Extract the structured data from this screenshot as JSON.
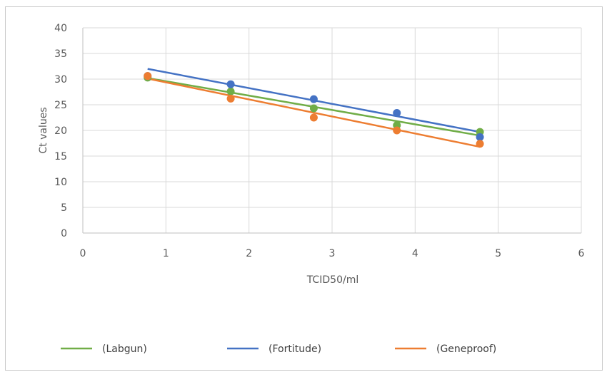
{
  "chart_data": {
    "type": "scatter",
    "title": "",
    "xlabel": "TCID50/ml",
    "ylabel": "Ct values",
    "xlim": [
      0,
      6
    ],
    "ylim": [
      0,
      40
    ],
    "xticks": [
      "0",
      "1",
      "2",
      "3",
      "4",
      "5",
      "6"
    ],
    "yticks": [
      "0",
      "5",
      "10",
      "15",
      "20",
      "25",
      "30",
      "35",
      "40"
    ],
    "grid": true,
    "legend_position": "bottom",
    "series": [
      {
        "name": "(Labgun)",
        "color": "#70ad47",
        "points": [
          [
            0.78,
            30.3
          ],
          [
            1.78,
            27.6
          ],
          [
            2.78,
            24.3
          ],
          [
            3.78,
            21.0
          ],
          [
            4.78,
            19.7
          ]
        ],
        "trendline": [
          [
            0.78,
            30.2
          ],
          [
            4.78,
            19.0
          ]
        ]
      },
      {
        "name": "(Fortitude)",
        "color": "#4472c4",
        "points": [
          [
            0.78,
            30.6
          ],
          [
            1.78,
            29.0
          ],
          [
            2.78,
            26.1
          ],
          [
            3.78,
            23.4
          ],
          [
            4.78,
            18.7
          ]
        ],
        "trendline": [
          [
            0.78,
            32.0
          ],
          [
            4.78,
            19.7
          ]
        ]
      },
      {
        "name": "(Geneproof)",
        "color": "#ed7d31",
        "points": [
          [
            0.78,
            30.6
          ],
          [
            1.78,
            26.2
          ],
          [
            2.78,
            22.5
          ],
          [
            3.78,
            20.0
          ],
          [
            4.78,
            17.4
          ]
        ],
        "trendline": [
          [
            0.78,
            30.1
          ],
          [
            4.78,
            16.8
          ]
        ]
      }
    ]
  }
}
